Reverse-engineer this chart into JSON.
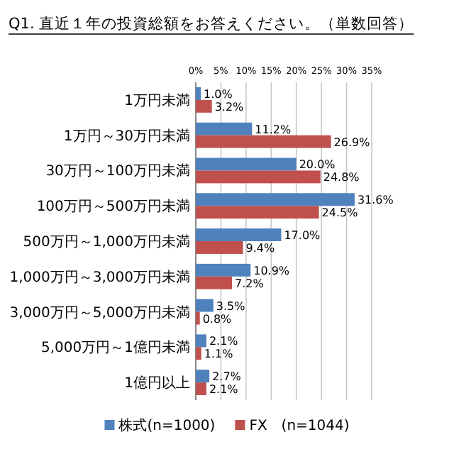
{
  "chart_data": {
    "type": "bar",
    "orientation": "horizontal",
    "title": "Q1. 直近１年の投資総額をお答えください。（単数回答）",
    "categories": [
      "1万円未満",
      "1万円～30万円未満",
      "30万円～100万円未満",
      "100万円～500万円未満",
      "500万円～1,000万円未満",
      "1,000万円～3,000万円未満",
      "3,000万円～5,000万円未満",
      "5,000万円～1億円未満",
      "1億円以上"
    ],
    "series": [
      {
        "name": "株式(n=1000)",
        "color": "#4f81bd",
        "values": [
          1.0,
          11.2,
          20.0,
          31.6,
          17.0,
          10.9,
          3.5,
          2.1,
          2.7
        ],
        "value_labels": [
          "1.0%",
          "11.2%",
          "20.0%",
          "31.6%",
          "17.0%",
          "10.9%",
          "3.5%",
          "2.1%",
          "2.7%"
        ]
      },
      {
        "name": "FX　(n=1044)",
        "color": "#c0504d",
        "values": [
          3.2,
          26.9,
          24.8,
          24.5,
          9.4,
          7.2,
          0.8,
          1.1,
          2.1
        ],
        "value_labels": [
          "3.2%",
          "26.9%",
          "24.8%",
          "24.5%",
          "9.4%",
          "7.2%",
          "0.8%",
          "1.1%",
          "2.1%"
        ]
      }
    ],
    "xlim": [
      0,
      35
    ],
    "xticks": [
      {
        "value": 0,
        "label": "0%"
      },
      {
        "value": 5,
        "label": "5%"
      },
      {
        "value": 10,
        "label": "10%"
      },
      {
        "value": 15,
        "label": "15%"
      },
      {
        "value": 20,
        "label": "20%"
      },
      {
        "value": 25,
        "label": "25%"
      },
      {
        "value": 30,
        "label": "30%"
      },
      {
        "value": 35,
        "label": "35%"
      }
    ],
    "grid": "x",
    "legend": "bottom"
  }
}
